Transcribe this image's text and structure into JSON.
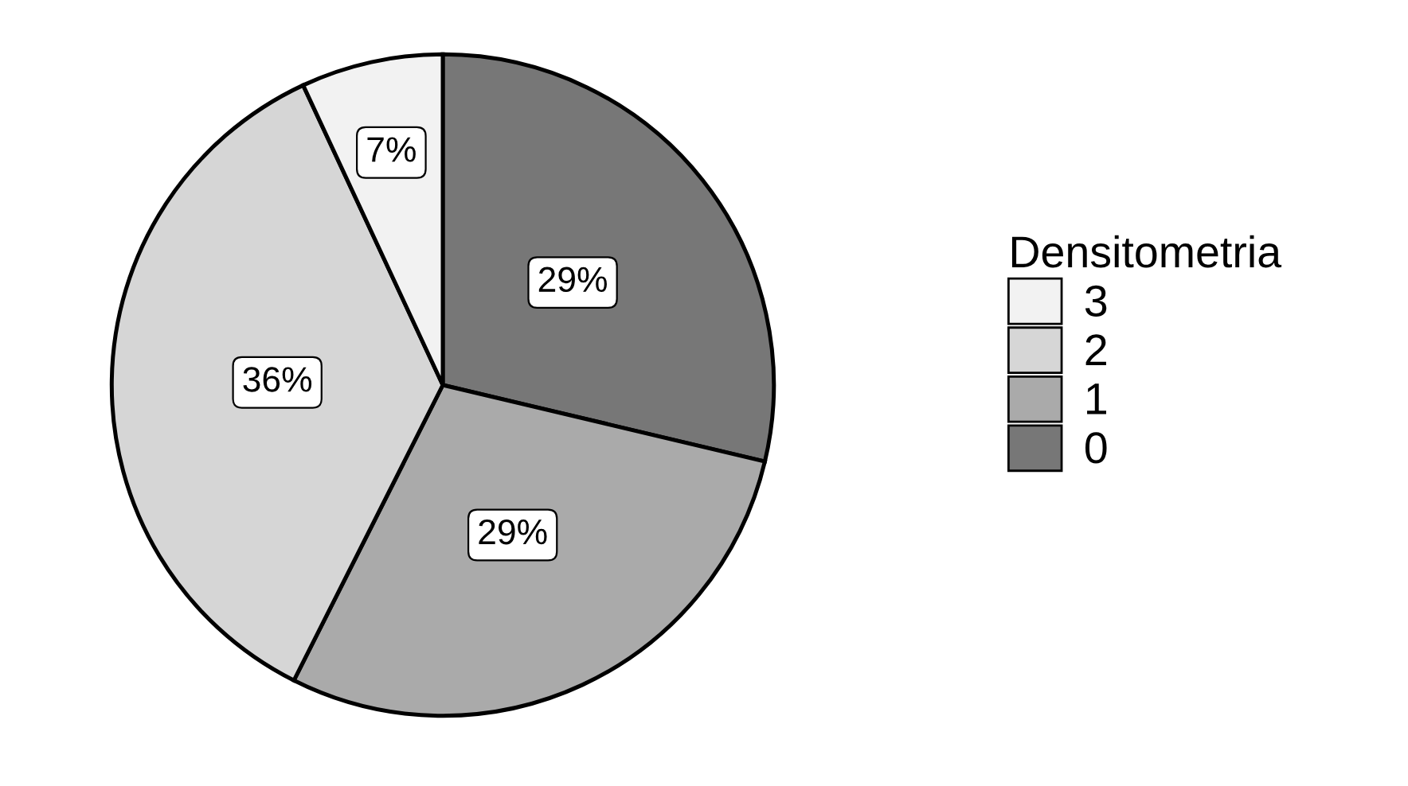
{
  "chart_data": {
    "type": "pie",
    "legend_title": "Densitometria",
    "categories": [
      "0",
      "1",
      "2",
      "3"
    ],
    "values": [
      29,
      29,
      36,
      7
    ],
    "value_labels": [
      "29%",
      "29%",
      "36%",
      "7%"
    ],
    "colors": [
      "#777777",
      "#aaaaaa",
      "#d6d6d6",
      "#f2f2f2"
    ],
    "legend": "right"
  }
}
